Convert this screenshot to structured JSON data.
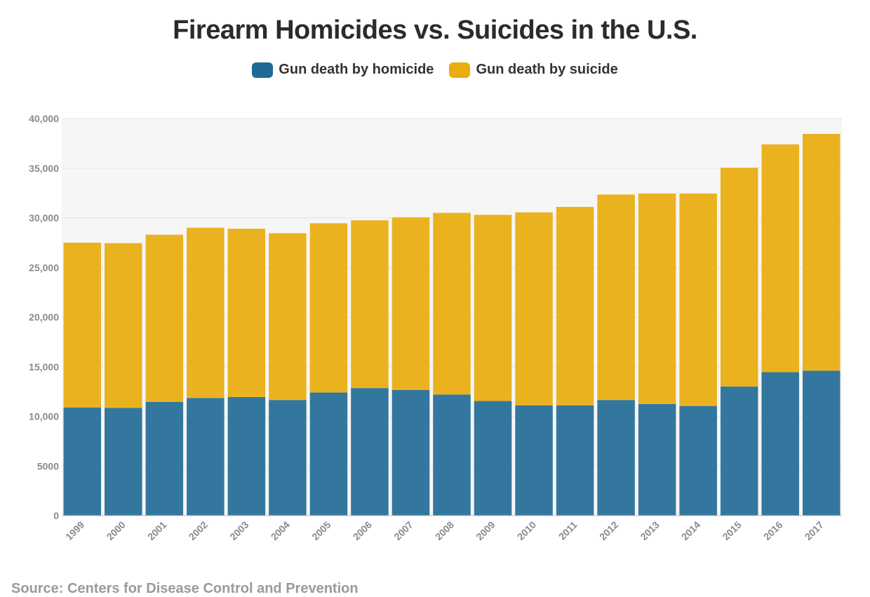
{
  "chart_data": {
    "type": "bar",
    "stacked": true,
    "title": "Firearm Homicides vs. Suicides in the U.S.",
    "xlabel": "",
    "ylabel": "",
    "ylim": [
      0,
      40000
    ],
    "yticks": [
      {
        "value": 0,
        "label": "0"
      },
      {
        "value": 5000,
        "label": "5000"
      },
      {
        "value": 10000,
        "label": "10,000"
      },
      {
        "value": 15000,
        "label": "15,000"
      },
      {
        "value": 20000,
        "label": "20,000"
      },
      {
        "value": 25000,
        "label": "25,000"
      },
      {
        "value": 30000,
        "label": "30,000"
      },
      {
        "value": 35000,
        "label": "35,000"
      },
      {
        "value": 40000,
        "label": "40,000"
      }
    ],
    "categories": [
      "1999",
      "2000",
      "2001",
      "2002",
      "2003",
      "2004",
      "2005",
      "2006",
      "2007",
      "2008",
      "2009",
      "2010",
      "2011",
      "2012",
      "2013",
      "2014",
      "2015",
      "2016",
      "2017"
    ],
    "series": [
      {
        "name": "Gun death by homicide",
        "color": "#33779f",
        "values": [
          10900,
          10850,
          11450,
          11850,
          11950,
          11650,
          12400,
          12850,
          12650,
          12200,
          11550,
          11100,
          11100,
          11650,
          11250,
          11050,
          13000,
          14450,
          14600
        ]
      },
      {
        "name": "Gun death by suicide",
        "color": "#ebb220",
        "values": [
          16600,
          16600,
          16850,
          17150,
          16950,
          16800,
          17050,
          16900,
          17400,
          18300,
          18750,
          19450,
          20000,
          20700,
          21200,
          21400,
          22050,
          22950,
          23850
        ]
      }
    ],
    "grid": true,
    "legend_position": "top-center",
    "plot_background": "#f6f6f6",
    "source": "Source: Centers for Disease Control and Prevention"
  }
}
